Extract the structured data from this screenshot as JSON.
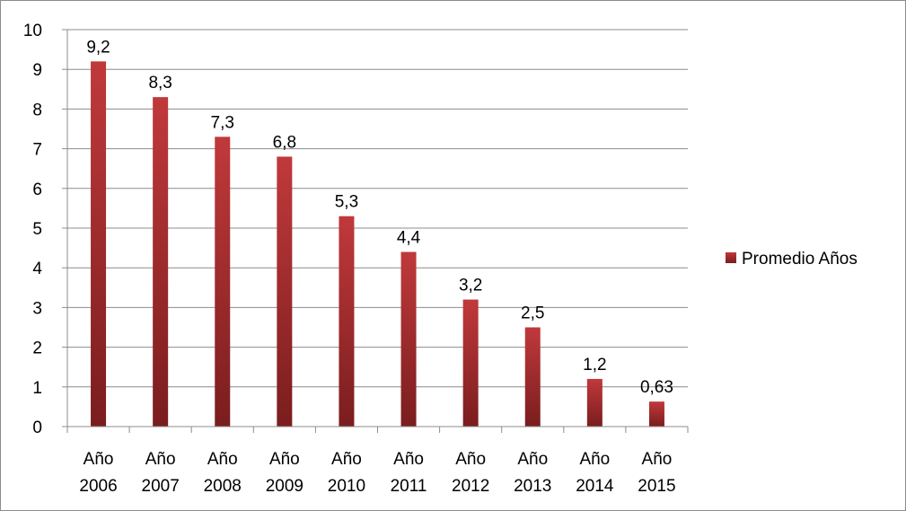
{
  "chart_data": {
    "type": "bar",
    "categories": [
      "Año 2006",
      "Año 2007",
      "Año 2008",
      "Año 2009",
      "Año 2010",
      "Año 2011",
      "Año 2012",
      "Año 2013",
      "Año 2014",
      "Año 2015"
    ],
    "category_lines": [
      [
        "Año",
        "2006"
      ],
      [
        "Año",
        "2007"
      ],
      [
        "Año",
        "2008"
      ],
      [
        "Año",
        "2009"
      ],
      [
        "Año",
        "2010"
      ],
      [
        "Año",
        "2011"
      ],
      [
        "Año",
        "2012"
      ],
      [
        "Año",
        "2013"
      ],
      [
        "Año",
        "2014"
      ],
      [
        "Año",
        "2015"
      ]
    ],
    "series": [
      {
        "name": "Promedio Años",
        "values": [
          9.2,
          8.3,
          7.3,
          6.8,
          5.3,
          4.4,
          3.2,
          2.5,
          1.2,
          0.63
        ],
        "labels": [
          "9,2",
          "8,3",
          "7,3",
          "6,8",
          "5,3",
          "4,4",
          "3,2",
          "2,5",
          "1,2",
          "0,63"
        ]
      }
    ],
    "yticks": [
      "0",
      "1",
      "2",
      "3",
      "4",
      "5",
      "6",
      "7",
      "8",
      "9",
      "10"
    ],
    "ylim": [
      0,
      10
    ],
    "grid": true,
    "legend_position": "right",
    "colors": {
      "bar_top": "#c0393b",
      "bar_bottom": "#7a1d1e",
      "grid": "#8c8c8c",
      "axis": "#8c8c8c"
    }
  }
}
